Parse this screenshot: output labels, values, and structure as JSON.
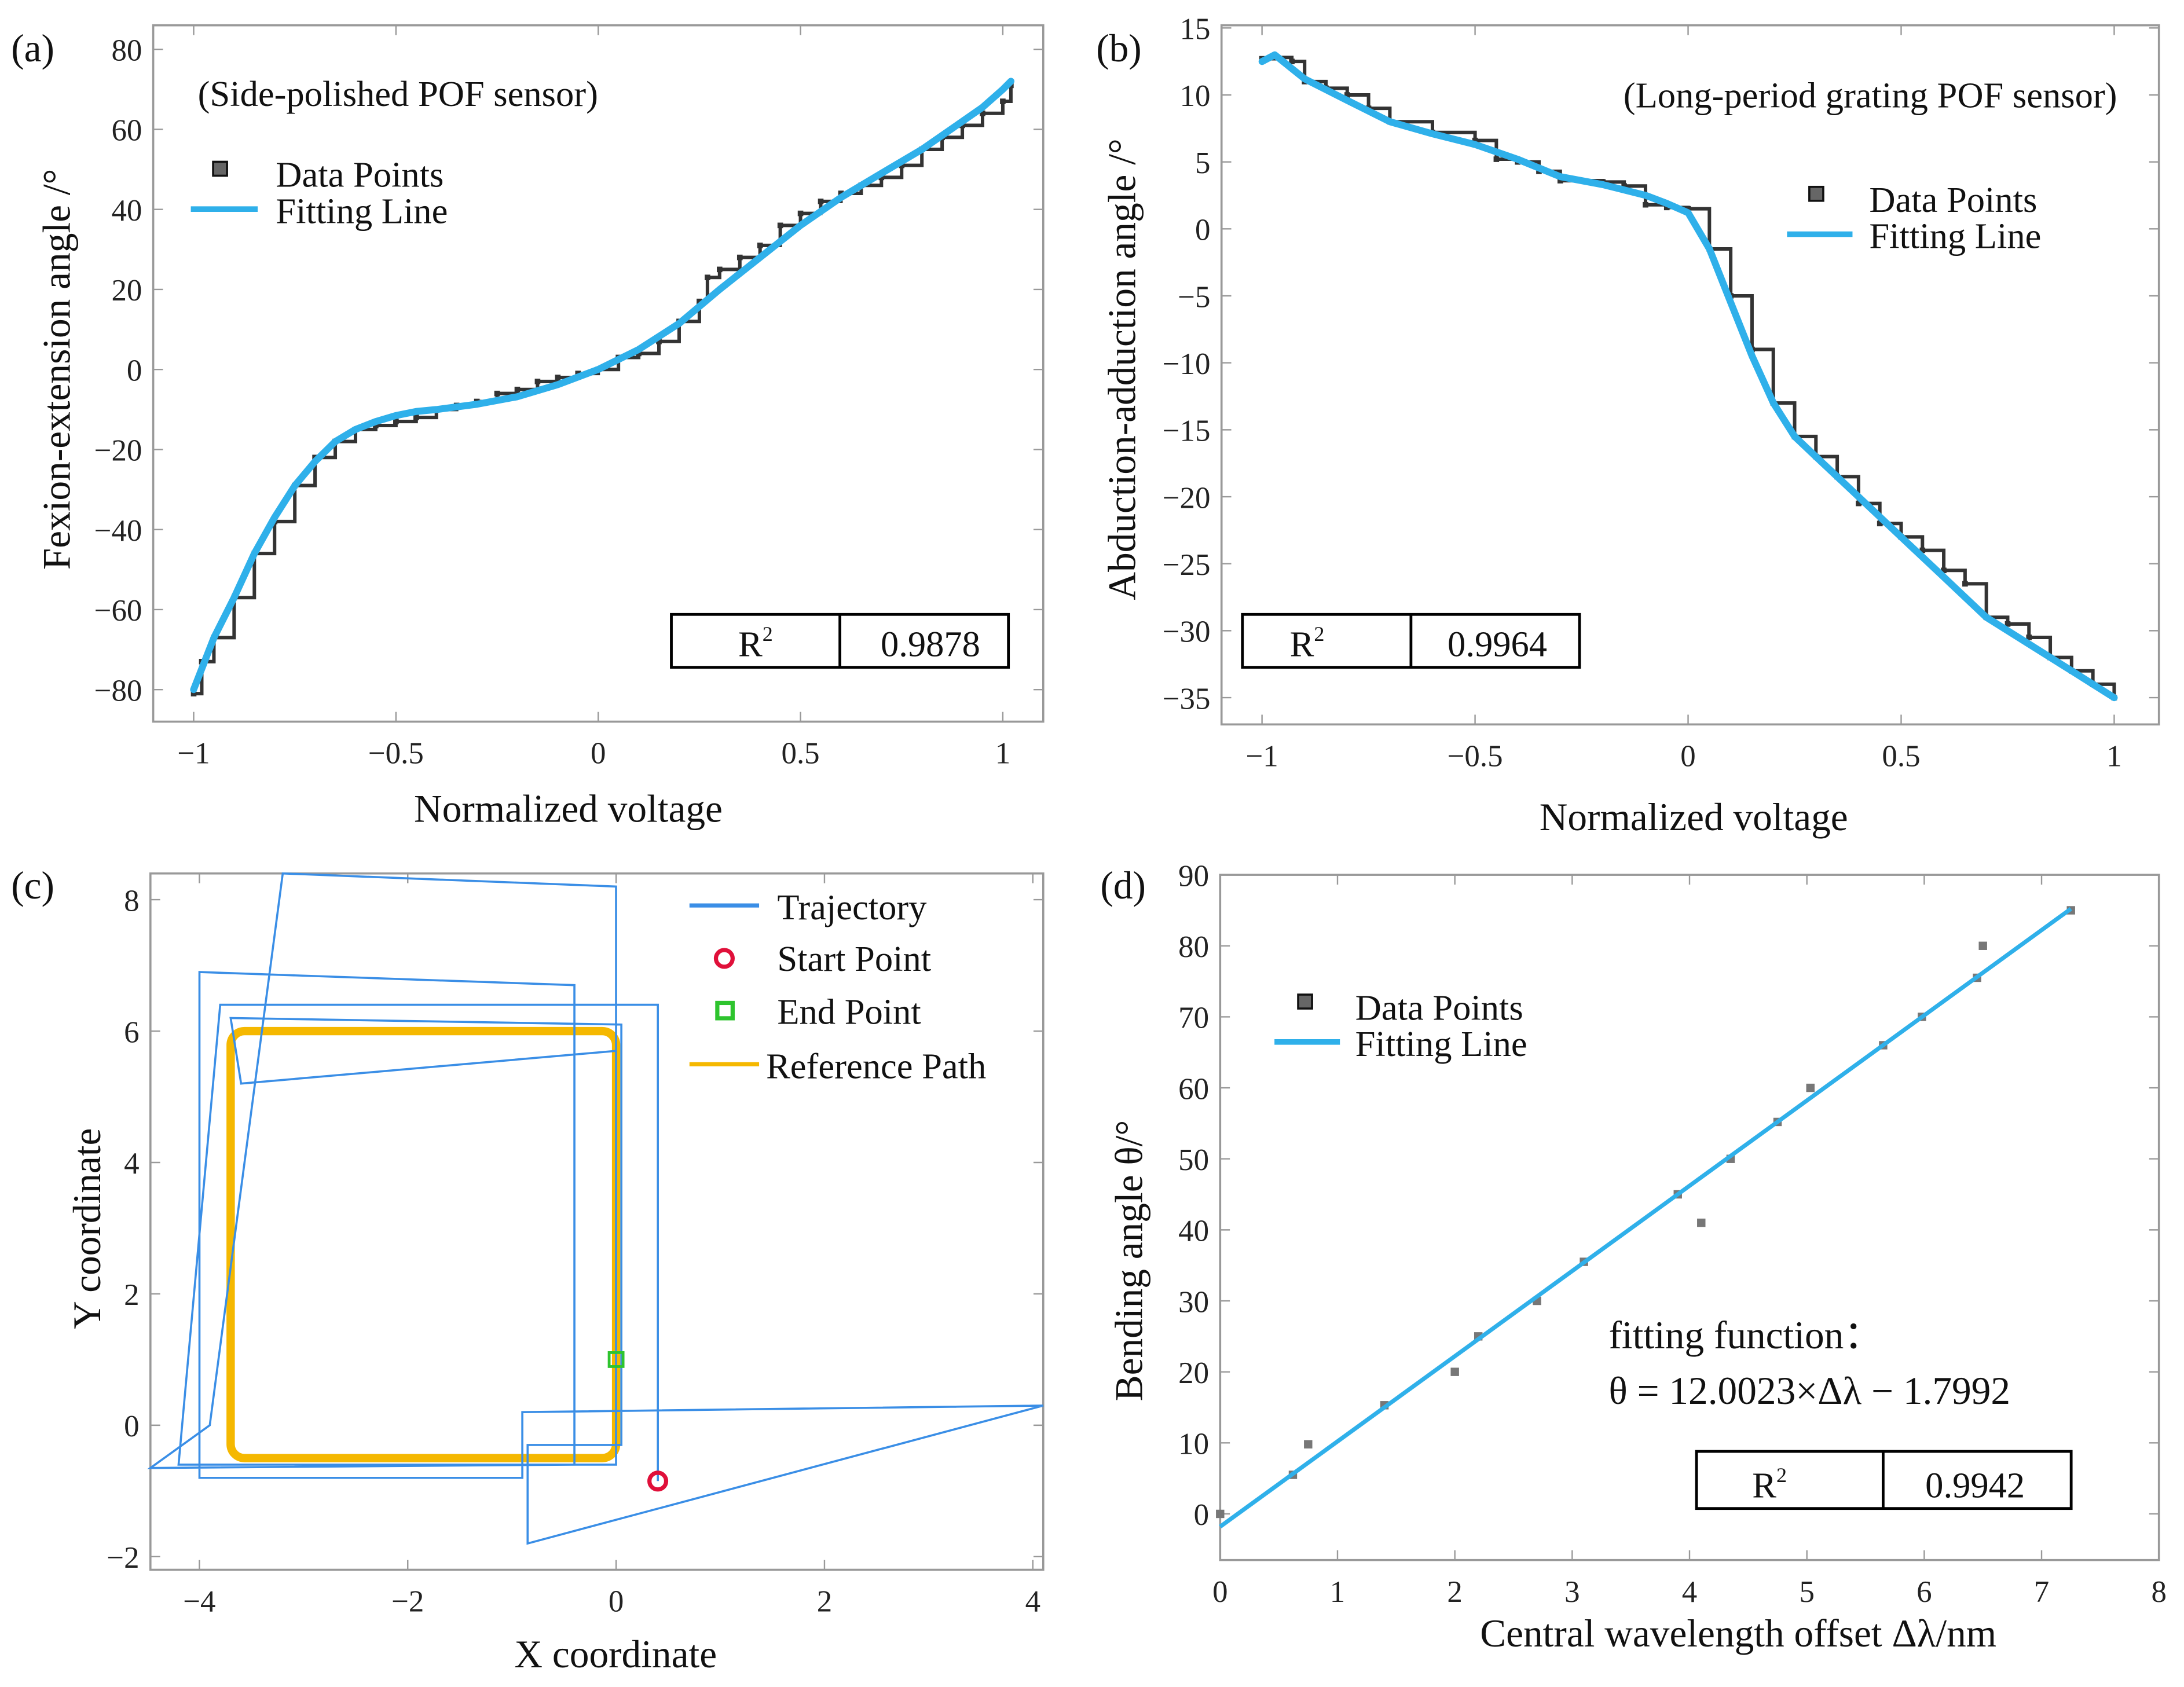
{
  "colors": {
    "fit": "#2fb0ea",
    "trajectory": "#3a8ee6",
    "reference": "#f5b800",
    "start": "#e0103a",
    "end": "#2ec42e",
    "data": "#333333"
  },
  "chart_data": [
    {
      "panel": "(a)",
      "type": "line",
      "annotation": "(Side-polished POF sensor)",
      "xlabel": "Normalized voltage",
      "ylabel": "Fexion-extension angle  /°",
      "xlim": [
        -1.1,
        1.1
      ],
      "ylim": [
        -88,
        86
      ],
      "xticks": [
        -1,
        -0.5,
        0,
        0.5,
        1
      ],
      "xtick_labels": [
        "−1",
        "−0.5",
        "0",
        "0.5",
        "1"
      ],
      "yticks": [
        -80,
        -60,
        -40,
        -20,
        0,
        20,
        40,
        60,
        80
      ],
      "ytick_labels": [
        "−80",
        "−60",
        "−40",
        "−20",
        "0",
        "20",
        "40",
        "60",
        "80"
      ],
      "legend": [
        "Data Points",
        "Fitting Line"
      ],
      "legend_position": "top-left",
      "r2_label": "R",
      "r2_sup": "2",
      "r2_value": "0.9878",
      "series": [
        {
          "name": "Data Points",
          "x": [
            -1,
            -0.98,
            -0.95,
            -0.9,
            -0.85,
            -0.8,
            -0.75,
            -0.7,
            -0.65,
            -0.6,
            -0.55,
            -0.5,
            -0.45,
            -0.4,
            -0.35,
            -0.3,
            -0.25,
            -0.2,
            -0.15,
            -0.1,
            -0.05,
            0,
            0.05,
            0.1,
            0.15,
            0.2,
            0.25,
            0.27,
            0.3,
            0.35,
            0.4,
            0.45,
            0.5,
            0.55,
            0.6,
            0.65,
            0.7,
            0.75,
            0.8,
            0.85,
            0.9,
            0.95,
            1,
            1.02
          ],
          "y": [
            -81,
            -73,
            -67,
            -57,
            -46,
            -38,
            -29,
            -22,
            -18,
            -15,
            -14,
            -13,
            -12,
            -10,
            -9,
            -8,
            -6,
            -5,
            -3,
            -2,
            -1,
            0,
            3,
            4,
            7,
            12,
            17,
            23,
            25,
            28,
            31,
            36,
            39,
            42,
            44,
            46,
            48,
            51,
            55,
            58,
            61,
            64,
            67,
            71
          ]
        },
        {
          "name": "Fitting Line",
          "x": [
            -1,
            -0.95,
            -0.9,
            -0.85,
            -0.8,
            -0.75,
            -0.7,
            -0.65,
            -0.6,
            -0.55,
            -0.5,
            -0.45,
            -0.4,
            -0.3,
            -0.2,
            -0.1,
            0,
            0.1,
            0.2,
            0.3,
            0.4,
            0.5,
            0.6,
            0.7,
            0.8,
            0.9,
            0.95,
            1,
            1.02
          ],
          "y": [
            -80,
            -67,
            -57,
            -46,
            -37,
            -29,
            -23,
            -18,
            -15,
            -13,
            -11.5,
            -10.5,
            -10,
            -8.7,
            -6.8,
            -3.8,
            0,
            5,
            11.5,
            20,
            28,
            36,
            43,
            49,
            55,
            62,
            65.5,
            70,
            72
          ]
        }
      ]
    },
    {
      "panel": "(b)",
      "type": "line",
      "annotation": "(Long-period grating POF sensor)",
      "xlabel": "Normalized voltage",
      "ylabel": "Abduction-adduction angle  /°",
      "xlim": [
        -1.095,
        1.105
      ],
      "ylim": [
        -37,
        15.2
      ],
      "xticks": [
        -1,
        -0.5,
        0,
        0.5,
        1
      ],
      "xtick_labels": [
        "−1",
        "−0.5",
        "0",
        "0.5",
        "1"
      ],
      "yticks": [
        -35,
        -30,
        -25,
        -20,
        -15,
        -10,
        -5,
        0,
        5,
        10,
        15
      ],
      "ytick_labels": [
        "−35",
        "−30",
        "−25",
        "−20",
        "−15",
        "−10",
        "−5",
        "0",
        "5",
        "10",
        "15"
      ],
      "legend": [
        "Data Points",
        "Fitting Line"
      ],
      "legend_position": "top-right",
      "r2_label": "R",
      "r2_sup": "2",
      "r2_value": "0.9964",
      "series": [
        {
          "name": "Data Points",
          "x": [
            -1,
            -0.97,
            -0.93,
            -0.9,
            -0.85,
            -0.8,
            -0.75,
            -0.7,
            -0.6,
            -0.5,
            -0.45,
            -0.4,
            -0.35,
            -0.3,
            -0.2,
            -0.15,
            -0.1,
            -0.05,
            0,
            0.05,
            0.1,
            0.15,
            0.2,
            0.25,
            0.3,
            0.35,
            0.4,
            0.45,
            0.5,
            0.55,
            0.6,
            0.65,
            0.7,
            0.75,
            0.8,
            0.85,
            0.9,
            0.95,
            1
          ],
          "y": [
            12.7,
            12.8,
            12.5,
            11,
            10.5,
            10,
            9,
            8,
            7.2,
            6.6,
            5.2,
            5,
            4.3,
            3.6,
            3.5,
            3.2,
            1.8,
            1.6,
            1.5,
            -1.5,
            -5,
            -9,
            -13,
            -15.5,
            -17,
            -18.5,
            -20.5,
            -22,
            -23,
            -24,
            -25.5,
            -26.5,
            -29,
            -29.5,
            -30.5,
            -32,
            -33,
            -34,
            -35
          ]
        },
        {
          "name": "Fitting Line",
          "x": [
            -1,
            -0.97,
            -0.9,
            -0.8,
            -0.7,
            -0.6,
            -0.5,
            -0.4,
            -0.3,
            -0.2,
            -0.1,
            -0.05,
            0,
            0.05,
            0.1,
            0.15,
            0.2,
            0.25,
            0.3,
            0.4,
            0.5,
            0.6,
            0.7,
            0.8,
            0.9,
            1
          ],
          "y": [
            12.5,
            13,
            11.2,
            9.6,
            8,
            7.1,
            6.3,
            5.2,
            3.9,
            3.3,
            2.5,
            1.9,
            1.2,
            -1.5,
            -5.5,
            -9.5,
            -13,
            -15.5,
            -17,
            -20,
            -23,
            -26,
            -29,
            -31,
            -33,
            -35
          ]
        }
      ]
    },
    {
      "panel": "(c)",
      "type": "line",
      "xlabel": "X coordinate",
      "ylabel": "Y coordinate",
      "xlim": [
        -4.47,
        4.1
      ],
      "ylim": [
        -2.2,
        8.4
      ],
      "xticks": [
        -4,
        -2,
        0,
        2,
        4
      ],
      "xtick_labels": [
        "−4",
        "−2",
        "0",
        "2",
        "4"
      ],
      "yticks": [
        -2,
        0,
        2,
        4,
        6,
        8
      ],
      "ytick_labels": [
        "−2",
        "0",
        "2",
        "4",
        "6",
        "8"
      ],
      "legend": [
        "Trajectory",
        "Start Point",
        "End Point",
        "Reference Path"
      ],
      "legend_position": "top-right",
      "trajectory": {
        "x": [
          0.4,
          0.4,
          -3.8,
          -4.2,
          0,
          0,
          -3.2,
          -3.9,
          -4.47,
          -0.4,
          -0.4,
          -4.0,
          -4.0,
          -0.9,
          -0.9,
          4.1,
          -0.85,
          -0.85,
          0.05,
          0.05,
          -3.7,
          -3.6,
          0,
          0
        ],
        "y": [
          -0.85,
          6.4,
          6.4,
          -0.6,
          -0.6,
          8.2,
          8.4,
          0,
          -0.65,
          -0.6,
          6.7,
          6.9,
          -0.8,
          -0.8,
          0.2,
          0.3,
          -1.8,
          -0.3,
          -0.3,
          6.1,
          6.2,
          5.2,
          5.7,
          1.0
        ]
      },
      "start_point": [
        0.4,
        -0.85
      ],
      "end_point": [
        0.0,
        1.0
      ],
      "reference_path": {
        "x": [
          -3.7,
          0.0
        ],
        "y": [
          -0.5,
          6.0
        ]
      }
    },
    {
      "panel": "(d)",
      "type": "scatter",
      "xlabel": "Central wavelength offset  Δλ/nm",
      "ylabel": "Bending angle  θ/°",
      "xlim": [
        0,
        8
      ],
      "ylim": [
        -6.5,
        90
      ],
      "xticks": [
        0,
        1,
        2,
        3,
        4,
        5,
        6,
        7,
        8
      ],
      "xtick_labels": [
        "0",
        "1",
        "2",
        "3",
        "4",
        "5",
        "6",
        "7",
        "8"
      ],
      "yticks": [
        0,
        10,
        20,
        30,
        40,
        50,
        60,
        70,
        80,
        90
      ],
      "ytick_labels": [
        "0",
        "10",
        "20",
        "30",
        "40",
        "50",
        "60",
        "70",
        "80",
        "90"
      ],
      "legend": [
        "Data Points",
        "Fitting Line"
      ],
      "legend_position": "top-left",
      "fit_title": "fitting function：",
      "fit_equation": "θ = 12.0023×Δλ − 1.7992",
      "fit": {
        "slope": 12.0023,
        "intercept": -1.7992,
        "x_range": [
          0,
          7.25
        ]
      },
      "r2_label": "R",
      "r2_sup": "2",
      "r2_value": "0.9942",
      "series": [
        {
          "name": "Data Points",
          "x": [
            0,
            0.62,
            0.75,
            1.4,
            2.0,
            2.2,
            2.7,
            3.1,
            3.9,
            4.1,
            4.35,
            4.75,
            5.03,
            5.65,
            5.98,
            6.45,
            6.5,
            7.25
          ],
          "y": [
            0,
            5.5,
            9.8,
            15.3,
            20,
            25,
            30,
            35.5,
            45,
            41,
            50,
            55.2,
            60,
            66,
            70,
            75.5,
            80,
            85
          ]
        }
      ]
    }
  ]
}
